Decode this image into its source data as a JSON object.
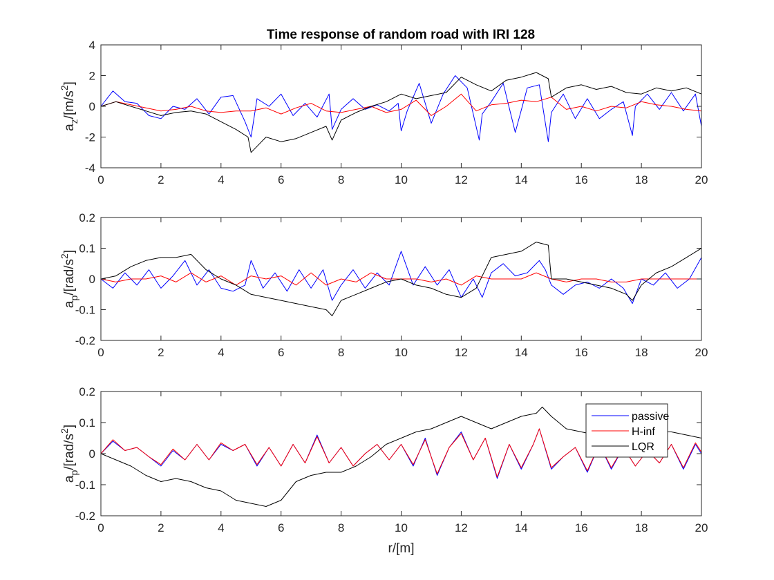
{
  "figure": {
    "title": "Time response of random road with IRI 128",
    "series_names": [
      "passive",
      "H-inf",
      "LQR"
    ],
    "colors": {
      "passive": "#0000ff",
      "H-inf": "#ff0000",
      "LQR": "#000000"
    }
  },
  "chart_data": [
    {
      "type": "line",
      "title": "Time response of random road with IRI 128",
      "xlabel": "",
      "ylabel": "a_z/[m/s^2]",
      "ylabel_main": "a",
      "ylabel_sub": "z",
      "ylabel_rest": "/[m/s",
      "ylabel_sup": "2",
      "ylabel_end": "]",
      "xlim": [
        0,
        20
      ],
      "ylim": [
        -4,
        4
      ],
      "xticks": [
        0,
        2,
        4,
        6,
        8,
        10,
        12,
        14,
        16,
        18,
        20
      ],
      "yticks": [
        -4,
        -2,
        0,
        2,
        4
      ],
      "grid": false,
      "legend": false,
      "series": [
        {
          "name": "passive",
          "color": "#0000ff",
          "x": [
            0,
            0.4,
            0.8,
            1.2,
            1.6,
            2,
            2.4,
            2.8,
            3.2,
            3.6,
            4,
            4.4,
            4.8,
            5,
            5.2,
            5.6,
            6,
            6.4,
            6.8,
            7.2,
            7.6,
            7.7,
            8,
            8.4,
            8.8,
            9.2,
            9.6,
            9.9,
            10,
            10.2,
            10.6,
            11,
            11.4,
            11.8,
            12.2,
            12.6,
            12.7,
            13,
            13.4,
            13.8,
            14.2,
            14.6,
            14.9,
            15,
            15.4,
            15.8,
            16.2,
            16.6,
            17,
            17.4,
            17.7,
            17.8,
            18.2,
            18.6,
            19,
            19.4,
            19.8,
            20
          ],
          "y": [
            0,
            1,
            0.3,
            0.2,
            -0.6,
            -0.8,
            0,
            -0.2,
            0.5,
            -0.5,
            0.6,
            0.7,
            -1,
            -2,
            0.5,
            0,
            0.8,
            -0.6,
            0.2,
            -0.7,
            0.8,
            -1.5,
            -0.2,
            0.5,
            -0.2,
            0.1,
            -0.3,
            0.2,
            -1.6,
            -0.3,
            1.5,
            -1.1,
            0.8,
            2,
            1.2,
            -2.2,
            -0.5,
            0.3,
            1.5,
            -1.7,
            1.2,
            1.4,
            -2.3,
            -0.4,
            0.8,
            -0.8,
            0.5,
            -0.8,
            -0.2,
            0.3,
            -1.9,
            0,
            0.8,
            -0.2,
            0.9,
            -0.3,
            0.8,
            -1.3
          ]
        },
        {
          "name": "H-inf",
          "color": "#ff0000",
          "x": [
            0,
            0.5,
            1,
            1.5,
            2,
            2.5,
            3,
            3.5,
            4,
            4.5,
            5,
            5.5,
            6,
            6.5,
            7,
            7.5,
            8,
            8.5,
            9,
            9.5,
            10,
            10.5,
            11,
            11.5,
            12,
            12.5,
            13,
            13.5,
            14,
            14.5,
            15,
            15.5,
            16,
            16.5,
            17,
            17.5,
            18,
            18.5,
            19,
            19.5,
            20
          ],
          "y": [
            0,
            0.3,
            0.1,
            -0.1,
            -0.3,
            -0.2,
            0,
            -0.3,
            -0.4,
            -0.3,
            -0.3,
            -0.1,
            -0.5,
            -0.1,
            0.2,
            -0.3,
            -0.4,
            -0.2,
            0,
            -0.4,
            -0.2,
            0.4,
            -0.6,
            0,
            0.8,
            -0.3,
            0.1,
            0.2,
            0.4,
            0.3,
            0.6,
            -0.2,
            0,
            -0.3,
            0,
            -0.1,
            0.3,
            0.1,
            0,
            -0.2,
            -0.3
          ]
        },
        {
          "name": "LQR",
          "color": "#000000",
          "x": [
            0,
            0.5,
            1,
            1.5,
            2,
            2.5,
            3,
            3.5,
            4,
            4.5,
            4.9,
            5,
            5.5,
            6,
            6.5,
            7,
            7.5,
            7.7,
            8,
            8.5,
            9,
            9.5,
            10,
            10.5,
            11,
            11.5,
            12,
            12.5,
            13,
            13.5,
            14,
            14.5,
            14.9,
            15,
            15.5,
            16,
            16.5,
            17,
            17.5,
            18,
            18.5,
            19,
            19.5,
            20
          ],
          "y": [
            0,
            0.3,
            0,
            -0.3,
            -0.6,
            -0.4,
            -0.3,
            -0.5,
            -1,
            -1.5,
            -2,
            -3,
            -2,
            -2.3,
            -2.1,
            -1.7,
            -1.3,
            -2.2,
            -0.9,
            -0.4,
            0,
            0.3,
            0.8,
            0.5,
            0.7,
            0.9,
            1.9,
            1.4,
            1,
            1.7,
            1.9,
            2.2,
            1.8,
            0.6,
            1.2,
            1.4,
            1.1,
            1.3,
            0.9,
            0.8,
            1.2,
            1,
            1.2,
            0.8
          ]
        }
      ]
    },
    {
      "type": "line",
      "title": "",
      "xlabel": "",
      "ylabel": "a_p/[rad/s^2]",
      "ylabel_main": "a",
      "ylabel_sub": "p",
      "ylabel_rest": "/[rad/s",
      "ylabel_sup": "2",
      "ylabel_end": "]",
      "xlim": [
        0,
        20
      ],
      "ylim": [
        -0.2,
        0.2
      ],
      "xticks": [
        0,
        2,
        4,
        6,
        8,
        10,
        12,
        14,
        16,
        18,
        20
      ],
      "yticks": [
        -0.2,
        -0.1,
        0,
        0.1,
        0.2
      ],
      "grid": false,
      "legend": false,
      "series": [
        {
          "name": "passive",
          "color": "#0000ff",
          "x": [
            0,
            0.4,
            0.8,
            1.2,
            1.6,
            2,
            2.4,
            2.8,
            3.2,
            3.6,
            4,
            4.4,
            4.8,
            5,
            5.4,
            5.8,
            6.2,
            6.6,
            7,
            7.4,
            7.7,
            8,
            8.4,
            8.8,
            9.2,
            9.6,
            10,
            10.4,
            10.8,
            11.2,
            11.6,
            12,
            12.4,
            12.7,
            13,
            13.4,
            13.8,
            14.2,
            14.6,
            14.8,
            15,
            15.4,
            15.8,
            16.2,
            16.6,
            17,
            17.4,
            17.7,
            18,
            18.4,
            18.8,
            19.2,
            19.6,
            20
          ],
          "y": [
            0,
            -0.03,
            0.02,
            -0.02,
            0.03,
            -0.03,
            0.01,
            0.06,
            -0.02,
            0.03,
            -0.03,
            -0.04,
            -0.02,
            0.06,
            -0.03,
            0.02,
            -0.04,
            0.03,
            -0.03,
            0.03,
            -0.07,
            -0.02,
            0.03,
            -0.03,
            0.02,
            -0.02,
            0.09,
            -0.02,
            0.04,
            -0.02,
            0.03,
            -0.06,
            0,
            -0.06,
            0.02,
            0.05,
            0.01,
            0.02,
            0.06,
            0.03,
            -0.02,
            -0.05,
            -0.02,
            -0.01,
            -0.03,
            0,
            -0.03,
            -0.08,
            0,
            -0.02,
            0.02,
            -0.03,
            0,
            0.07
          ]
        },
        {
          "name": "H-inf",
          "color": "#ff0000",
          "x": [
            0,
            0.5,
            1,
            1.5,
            2,
            2.5,
            3,
            3.5,
            4,
            4.5,
            5,
            5.5,
            6,
            6.5,
            7,
            7.5,
            8,
            8.5,
            9,
            9.5,
            10,
            10.5,
            11,
            11.5,
            12,
            12.5,
            13,
            13.5,
            14,
            14.5,
            15,
            15.5,
            16,
            16.5,
            17,
            17.5,
            18,
            18.5,
            19,
            19.5,
            20
          ],
          "y": [
            0,
            -0.01,
            0,
            0,
            0.01,
            -0.01,
            0.02,
            -0.01,
            0.01,
            -0.02,
            0.01,
            0,
            0.01,
            -0.02,
            0.02,
            -0.02,
            0,
            -0.01,
            0.02,
            0,
            0,
            0,
            -0.01,
            0,
            -0.02,
            0.01,
            0,
            0,
            0,
            0.02,
            0,
            -0.01,
            0,
            0,
            -0.01,
            -0.01,
            0,
            0,
            0,
            0,
            0
          ]
        },
        {
          "name": "LQR",
          "color": "#000000",
          "x": [
            0,
            0.5,
            1,
            1.5,
            2,
            2.5,
            3,
            3.5,
            4,
            4.5,
            5,
            5.5,
            6,
            6.5,
            7,
            7.5,
            7.7,
            8,
            8.5,
            9,
            9.5,
            10,
            10.5,
            11,
            11.5,
            12,
            12.5,
            13,
            13.5,
            14,
            14.5,
            14.9,
            15,
            15.5,
            16,
            16.5,
            17,
            17.5,
            17.7,
            18,
            18.5,
            19,
            19.5,
            20
          ],
          "y": [
            0,
            0.01,
            0.04,
            0.06,
            0.07,
            0.07,
            0.08,
            0.03,
            0,
            -0.02,
            -0.05,
            -0.06,
            -0.07,
            -0.08,
            -0.09,
            -0.1,
            -0.12,
            -0.07,
            -0.05,
            -0.03,
            -0.01,
            0,
            -0.02,
            -0.03,
            -0.05,
            -0.06,
            -0.03,
            0.07,
            0.08,
            0.09,
            0.12,
            0.11,
            0,
            0,
            -0.01,
            -0.02,
            -0.03,
            -0.05,
            -0.07,
            -0.02,
            0.02,
            0.04,
            0.07,
            0.1
          ]
        }
      ]
    },
    {
      "type": "line",
      "title": "",
      "xlabel": "r/[m]",
      "ylabel": "a_p/[rad/s^2]",
      "ylabel_main": "a",
      "ylabel_sub": "p",
      "ylabel_rest": "/[rad/s",
      "ylabel_sup": "2",
      "ylabel_end": "]",
      "xlim": [
        0,
        20
      ],
      "ylim": [
        -0.2,
        0.2
      ],
      "xticks": [
        0,
        2,
        4,
        6,
        8,
        10,
        12,
        14,
        16,
        18,
        20
      ],
      "yticks": [
        -0.2,
        -0.1,
        0,
        0.1,
        0.2
      ],
      "grid": false,
      "legend": true,
      "legend_position": "top-right",
      "series": [
        {
          "name": "passive",
          "color": "#0000ff",
          "x": [
            0,
            0.4,
            0.8,
            1.2,
            1.6,
            2,
            2.4,
            2.8,
            3.2,
            3.6,
            4,
            4.4,
            4.8,
            5.2,
            5.6,
            6,
            6.4,
            6.8,
            7.2,
            7.6,
            8,
            8.4,
            8.8,
            9.2,
            9.6,
            10,
            10.4,
            10.8,
            11.2,
            11.6,
            12,
            12.4,
            12.8,
            13.2,
            13.6,
            14,
            14.4,
            14.6,
            15,
            15.4,
            15.8,
            16.2,
            16.6,
            17,
            17.4,
            17.8,
            18.2,
            18.6,
            19,
            19.4,
            19.8,
            20
          ],
          "y": [
            0,
            0.04,
            0.01,
            0.02,
            -0.01,
            -0.04,
            0.01,
            -0.02,
            0.03,
            -0.02,
            0.03,
            0.01,
            0.03,
            -0.04,
            0.02,
            -0.04,
            0.03,
            -0.03,
            0.06,
            -0.03,
            0.02,
            -0.04,
            0,
            0.03,
            -0.02,
            0.03,
            -0.04,
            0.05,
            -0.07,
            0.02,
            0.07,
            -0.02,
            0.05,
            -0.08,
            0.03,
            -0.05,
            0.03,
            0.08,
            -0.05,
            -0.01,
            0.02,
            -0.06,
            0.03,
            -0.05,
            0.02,
            -0.04,
            0.01,
            -0.03,
            0.03,
            -0.05,
            0.03,
            0
          ]
        },
        {
          "name": "H-inf",
          "color": "#ff0000",
          "x": [
            0,
            0.4,
            0.8,
            1.2,
            1.6,
            2,
            2.4,
            2.8,
            3.2,
            3.6,
            4,
            4.4,
            4.8,
            5.2,
            5.6,
            6,
            6.4,
            6.8,
            7.2,
            7.6,
            8,
            8.4,
            8.8,
            9.2,
            9.6,
            10,
            10.4,
            10.8,
            11.2,
            11.6,
            12,
            12.4,
            12.8,
            13.2,
            13.6,
            14,
            14.4,
            14.6,
            15,
            15.4,
            15.8,
            16.2,
            16.6,
            17,
            17.4,
            17.8,
            18.2,
            18.6,
            19,
            19.4,
            19.8,
            20
          ],
          "y": [
            0,
            0.045,
            0.01,
            0.02,
            -0.01,
            -0.035,
            0.015,
            -0.02,
            0.03,
            -0.02,
            0.035,
            0.01,
            0.03,
            -0.035,
            0.02,
            -0.04,
            0.03,
            -0.03,
            0.055,
            -0.03,
            0.02,
            -0.04,
            0,
            0.03,
            -0.02,
            0.03,
            -0.035,
            0.045,
            -0.065,
            0.02,
            0.065,
            -0.02,
            0.05,
            -0.075,
            0.03,
            -0.045,
            0.03,
            0.08,
            -0.045,
            -0.01,
            0.02,
            -0.055,
            0.03,
            -0.045,
            0.02,
            -0.04,
            0.01,
            -0.03,
            0.03,
            -0.045,
            0.035,
            0.005
          ]
        },
        {
          "name": "LQR",
          "color": "#000000",
          "x": [
            0,
            0.5,
            1,
            1.5,
            2,
            2.5,
            3,
            3.5,
            4,
            4.5,
            5,
            5.5,
            6,
            6.5,
            7,
            7.5,
            8,
            8.5,
            9,
            9.5,
            10,
            10.5,
            11,
            11.5,
            12,
            12.5,
            13,
            13.5,
            14,
            14.5,
            14.7,
            15,
            15.5,
            16,
            16.5,
            17,
            17.5,
            18,
            18.5,
            19,
            19.5,
            20
          ],
          "y": [
            0,
            -0.02,
            -0.04,
            -0.07,
            -0.09,
            -0.08,
            -0.09,
            -0.11,
            -0.12,
            -0.15,
            -0.16,
            -0.17,
            -0.15,
            -0.09,
            -0.07,
            -0.06,
            -0.06,
            -0.04,
            -0.01,
            0.03,
            0.05,
            0.07,
            0.08,
            0.1,
            0.12,
            0.1,
            0.08,
            0.1,
            0.12,
            0.13,
            0.15,
            0.12,
            0.08,
            0.07,
            0.06,
            0.05,
            0.05,
            0.07,
            0.07,
            0.07,
            0.06,
            0.05
          ]
        }
      ]
    }
  ]
}
